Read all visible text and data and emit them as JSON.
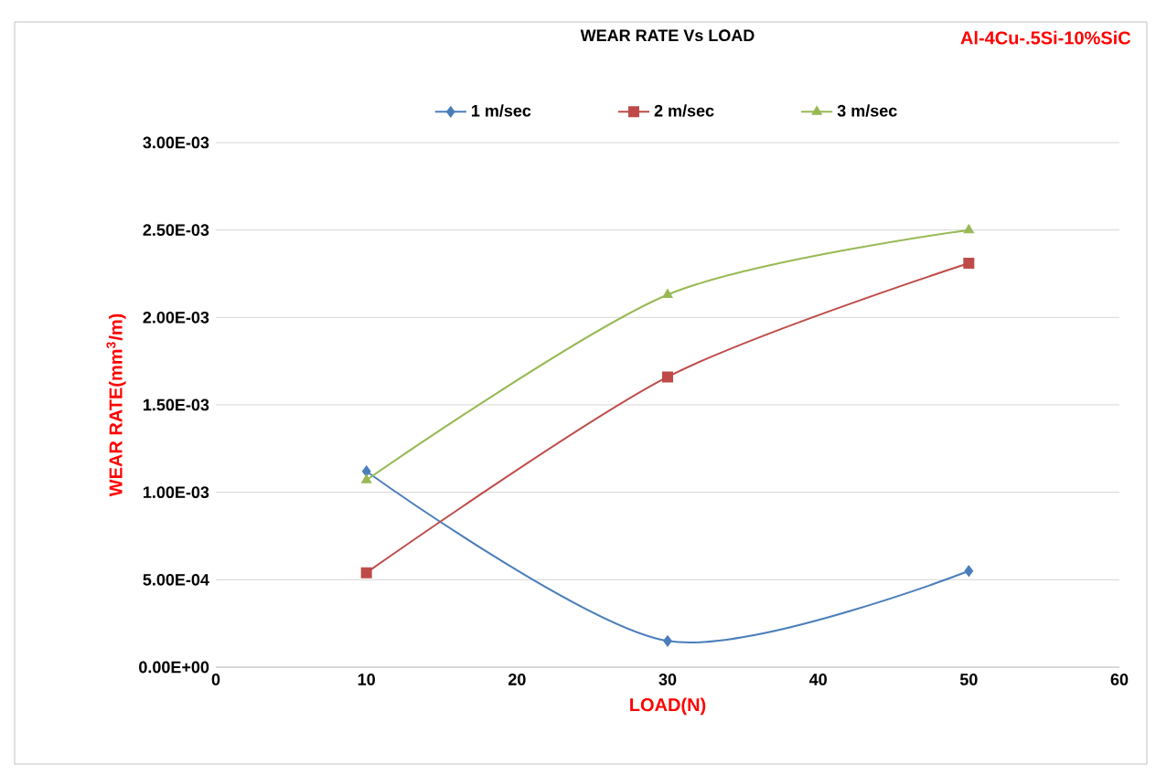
{
  "chart_data": {
    "type": "line",
    "title": "WEAR RATE Vs LOAD",
    "xlabel": "LOAD(N)",
    "ylabel": "WEAR RATE(mm$^{3}$/m)",
    "annotations": [
      "Al-4Cu-.5Si-10%SiC"
    ],
    "x": [
      10,
      30,
      50
    ],
    "series": [
      {
        "name": "1 m/sec",
        "color": "#4a7ebb",
        "marker": "diamond",
        "values": [
          0.00112,
          0.00015,
          0.00055
        ]
      },
      {
        "name": "2 m/sec",
        "color": "#be4b48",
        "marker": "square",
        "values": [
          0.00054,
          0.00166,
          0.00231
        ]
      },
      {
        "name": "3 m/sec",
        "color": "#98b954",
        "marker": "triangle",
        "values": [
          0.00107,
          0.00213,
          0.0025
        ]
      }
    ],
    "xlim": [
      0,
      60
    ],
    "xticks": [
      0,
      10,
      20,
      30,
      40,
      50,
      60
    ],
    "ylim": [
      0,
      0.003
    ],
    "yticks": [
      {
        "value": 0,
        "label": "0.00E+00"
      },
      {
        "value": 0.0005,
        "label": "5.00E-04"
      },
      {
        "value": 0.001,
        "label": "1.00E-03"
      },
      {
        "value": 0.0015,
        "label": "1.50E-03"
      },
      {
        "value": 0.002,
        "label": "2.00E-03"
      },
      {
        "value": 0.0025,
        "label": "2.50E-03"
      },
      {
        "value": 0.003,
        "label": "3.00E-03"
      }
    ],
    "grid": "y",
    "legend": "top"
  }
}
